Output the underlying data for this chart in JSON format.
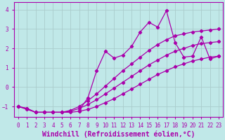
{
  "xlabel": "Windchill (Refroidissement éolien,°C)",
  "xlim": [
    -0.5,
    23.5
  ],
  "ylim": [
    -1.55,
    4.4
  ],
  "bg_color": "#c0e8e8",
  "line_color": "#aa00aa",
  "grid_color": "#aacccc",
  "xticks": [
    0,
    1,
    2,
    3,
    4,
    5,
    6,
    7,
    8,
    9,
    10,
    11,
    12,
    13,
    14,
    15,
    16,
    17,
    18,
    19,
    20,
    21,
    22,
    23
  ],
  "yticks": [
    -1,
    0,
    1,
    2,
    3,
    4
  ],
  "line1_x": [
    0,
    1,
    2,
    3,
    4,
    5,
    6,
    7,
    8,
    9,
    10,
    11,
    12,
    13,
    14,
    15,
    16,
    17,
    18,
    19,
    20,
    21,
    22,
    23
  ],
  "line1_y": [
    -1.0,
    -1.15,
    -1.3,
    -1.3,
    -1.3,
    -1.3,
    -1.3,
    -1.25,
    -1.15,
    -1.0,
    -0.8,
    -0.6,
    -0.35,
    -0.1,
    0.15,
    0.4,
    0.65,
    0.85,
    1.05,
    1.2,
    1.35,
    1.45,
    1.55,
    1.6
  ],
  "line2_x": [
    0,
    1,
    2,
    3,
    4,
    5,
    6,
    7,
    8,
    9,
    10,
    11,
    12,
    13,
    14,
    15,
    16,
    17,
    18,
    19,
    20,
    21,
    22,
    23
  ],
  "line2_y": [
    -1.0,
    -1.1,
    -1.3,
    -1.3,
    -1.3,
    -1.3,
    -1.25,
    -1.1,
    -0.9,
    -0.65,
    -0.35,
    -0.05,
    0.25,
    0.55,
    0.85,
    1.15,
    1.4,
    1.65,
    1.85,
    2.0,
    2.15,
    2.25,
    2.3,
    2.35
  ],
  "line3_x": [
    0,
    1,
    2,
    3,
    4,
    5,
    6,
    7,
    8,
    9,
    10,
    11,
    12,
    13,
    14,
    15,
    16,
    17,
    18,
    19,
    20,
    21,
    22,
    23
  ],
  "line3_y": [
    -1.0,
    -1.1,
    -1.3,
    -1.3,
    -1.3,
    -1.3,
    -1.2,
    -1.0,
    -0.7,
    -0.35,
    0.05,
    0.45,
    0.85,
    1.2,
    1.55,
    1.9,
    2.2,
    2.45,
    2.65,
    2.75,
    2.85,
    2.9,
    2.95,
    3.0
  ],
  "line4_x": [
    7,
    8,
    9,
    10,
    11,
    12,
    13,
    14,
    15,
    16,
    17,
    18,
    19,
    20,
    21,
    22,
    23
  ],
  "line4_y": [
    -1.2,
    -0.55,
    0.85,
    1.85,
    1.5,
    1.65,
    2.1,
    2.85,
    3.35,
    3.1,
    3.95,
    2.3,
    1.55,
    1.6,
    2.6,
    1.45,
    1.6
  ],
  "marker_style": "D",
  "marker_size": 2.2,
  "line_width": 0.9,
  "tick_label_fontsize": 5.5,
  "xlabel_fontsize": 7.0
}
